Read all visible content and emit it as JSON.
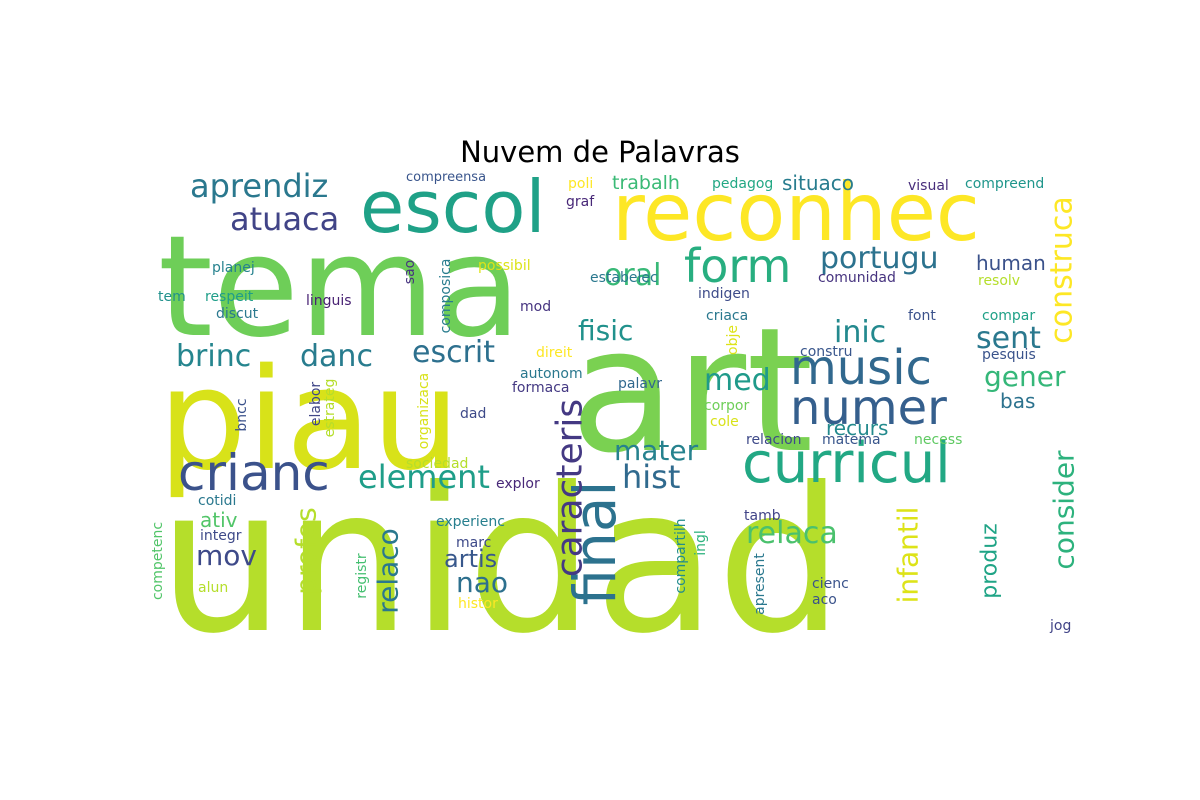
{
  "chart_data": {
    "type": "wordcloud",
    "title": "Nuvem de Palavras",
    "words": [
      {
        "text": "unidad",
        "color": "#b5de2b"
      },
      {
        "text": "art",
        "color": "#7ad151"
      },
      {
        "text": "tema",
        "color": "#6ece58"
      },
      {
        "text": "piau",
        "color": "#d8e219"
      },
      {
        "text": "reconhec",
        "color": "#fde725"
      },
      {
        "text": "escol",
        "color": "#1fa187"
      },
      {
        "text": "curricul",
        "color": "#22a884"
      },
      {
        "text": "crianc",
        "color": "#3b528b"
      },
      {
        "text": "music",
        "color": "#31688e"
      },
      {
        "text": "numer",
        "color": "#355f8d"
      },
      {
        "text": "form",
        "color": "#28ae80"
      },
      {
        "text": "final",
        "color": "#2c728e"
      },
      {
        "text": "caracteris",
        "color": "#443983"
      },
      {
        "text": "element",
        "color": "#1f9e89"
      },
      {
        "text": "aprendiz",
        "color": "#2a788e"
      },
      {
        "text": "atuaca",
        "color": "#414487"
      },
      {
        "text": "escrit",
        "color": "#2d708e"
      },
      {
        "text": "danc",
        "color": "#287c8e"
      },
      {
        "text": "brinc",
        "color": "#25858e"
      },
      {
        "text": "portugu",
        "color": "#2c728e"
      },
      {
        "text": "oral",
        "color": "#38b977"
      },
      {
        "text": "fisic",
        "color": "#21918c"
      },
      {
        "text": "inic",
        "color": "#23898e"
      },
      {
        "text": "sent",
        "color": "#2a788e"
      },
      {
        "text": "construca",
        "color": "#fde725"
      },
      {
        "text": "gener",
        "color": "#35b779"
      },
      {
        "text": "med",
        "color": "#1f9a8a"
      },
      {
        "text": "hist",
        "color": "#306a8e"
      },
      {
        "text": "mater",
        "color": "#26828e"
      },
      {
        "text": "relaca",
        "color": "#4ac16d"
      },
      {
        "text": "infantil",
        "color": "#dde318"
      },
      {
        "text": "consider",
        "color": "#2db27d"
      },
      {
        "text": "mov",
        "color": "#3e4a89"
      },
      {
        "text": "profes",
        "color": "#b5de2b"
      },
      {
        "text": "relaco",
        "color": "#2a788e"
      },
      {
        "text": "nao",
        "color": "#2d708e"
      },
      {
        "text": "artis",
        "color": "#38588c"
      },
      {
        "text": "produz",
        "color": "#20a486"
      },
      {
        "text": "situaco",
        "color": "#287c8e"
      },
      {
        "text": "trabalh",
        "color": "#3aba76"
      },
      {
        "text": "human",
        "color": "#3b528b"
      },
      {
        "text": "bas",
        "color": "#2c728e"
      },
      {
        "text": "recurs",
        "color": "#238a8d"
      },
      {
        "text": "ativ",
        "color": "#52c569"
      },
      {
        "text": "compreensa",
        "color": "#39558c"
      },
      {
        "text": "graf",
        "color": "#482878"
      },
      {
        "text": "poli",
        "color": "#fde725"
      },
      {
        "text": "pedagog",
        "color": "#22a884"
      },
      {
        "text": "visual",
        "color": "#472d7b"
      },
      {
        "text": "compreend",
        "color": "#1f968b"
      },
      {
        "text": "estabelec",
        "color": "#2a788e"
      },
      {
        "text": "comunidad",
        "color": "#46337f"
      },
      {
        "text": "resolv",
        "color": "#b5de2b"
      },
      {
        "text": "indigen",
        "color": "#3e4c8a"
      },
      {
        "text": "criaca",
        "color": "#2a788e"
      },
      {
        "text": "font",
        "color": "#3b528b"
      },
      {
        "text": "compar",
        "color": "#1fa187"
      },
      {
        "text": "constru",
        "color": "#39568c"
      },
      {
        "text": "pesquis",
        "color": "#3a538b"
      },
      {
        "text": "obje",
        "color": "#dde318"
      },
      {
        "text": "direit",
        "color": "#fde725"
      },
      {
        "text": "autonom",
        "color": "#2a788e"
      },
      {
        "text": "formaca",
        "color": "#443983"
      },
      {
        "text": "palavr",
        "color": "#31688e"
      },
      {
        "text": "corpor",
        "color": "#6ece58"
      },
      {
        "text": "cole",
        "color": "#d8e219"
      },
      {
        "text": "relacion",
        "color": "#3e4a89"
      },
      {
        "text": "matema",
        "color": "#39568c"
      },
      {
        "text": "necess",
        "color": "#5ec962"
      },
      {
        "text": "planej",
        "color": "#26828e"
      },
      {
        "text": "sao",
        "color": "#46337f"
      },
      {
        "text": "possibil",
        "color": "#dde318"
      },
      {
        "text": "composica",
        "color": "#287c8e"
      },
      {
        "text": "mod",
        "color": "#463480"
      },
      {
        "text": "tem",
        "color": "#21918c"
      },
      {
        "text": "respeit",
        "color": "#1f9e89"
      },
      {
        "text": "linguis",
        "color": "#482173"
      },
      {
        "text": "discut",
        "color": "#2a788e"
      },
      {
        "text": "bncc",
        "color": "#3b528b"
      },
      {
        "text": "elabor",
        "color": "#404688"
      },
      {
        "text": "estrateg",
        "color": "#b5de2b"
      },
      {
        "text": "organizaca",
        "color": "#d8e219"
      },
      {
        "text": "dad",
        "color": "#3e4a89"
      },
      {
        "text": "sociedad",
        "color": "#b5de2b"
      },
      {
        "text": "explor",
        "color": "#482878"
      },
      {
        "text": "cotidi",
        "color": "#2a788e"
      },
      {
        "text": "integr",
        "color": "#3e4a89"
      },
      {
        "text": "experienc",
        "color": "#277f8e"
      },
      {
        "text": "marc",
        "color": "#3e4a89"
      },
      {
        "text": "compartilh",
        "color": "#228c8d"
      },
      {
        "text": "ingl",
        "color": "#2db27d"
      },
      {
        "text": "tamb",
        "color": "#414487"
      },
      {
        "text": "apresent",
        "color": "#2a788e"
      },
      {
        "text": "cienc",
        "color": "#3a538b"
      },
      {
        "text": "aco",
        "color": "#3a538b"
      },
      {
        "text": "jog",
        "color": "#414487"
      },
      {
        "text": "competenc",
        "color": "#52c569"
      },
      {
        "text": "alun",
        "color": "#b5de2b"
      },
      {
        "text": "registr",
        "color": "#44bf70"
      },
      {
        "text": "histor",
        "color": "#fde725"
      }
    ]
  }
}
